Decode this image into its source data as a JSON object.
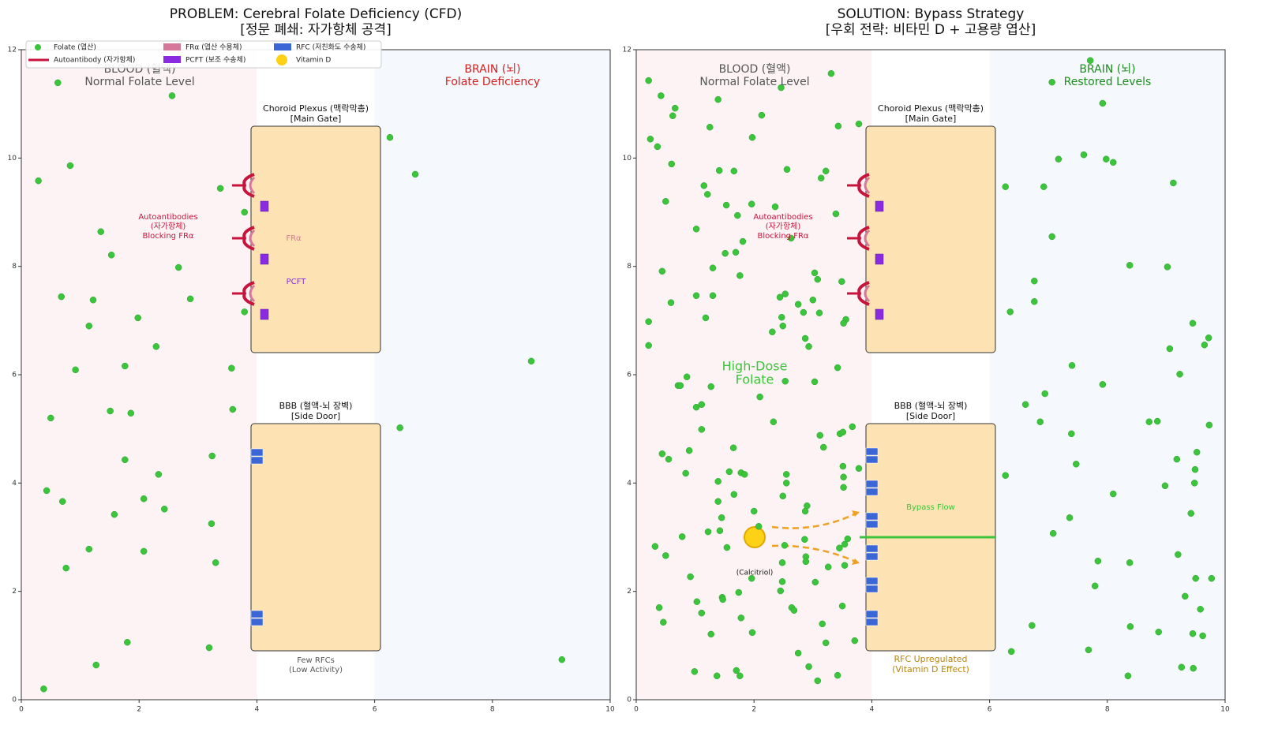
{
  "chart_data": [
    {
      "type": "scatter",
      "title": [
        "PROBLEM: Cerebral Folate Deficiency (CFD)",
        "[정문 폐쇄: 자가항체 공격]"
      ],
      "xlim": [
        0,
        10
      ],
      "ylim": [
        0,
        12
      ],
      "xticks": [
        0,
        2,
        4,
        6,
        8,
        10
      ],
      "yticks": [
        0,
        2,
        4,
        6,
        8,
        10,
        12
      ],
      "series": [
        {
          "name": "Folate (엽산)",
          "color": "#3cc43c",
          "x": [
            0.62,
            2.56,
            0.83,
            0.29,
            6.26,
            6.69,
            3.38,
            3.79,
            1.35,
            1.53,
            2.67,
            0.68,
            1.22,
            2.87,
            1.15,
            1.98,
            3.79,
            2.29,
            0.92,
            1.76,
            3.57,
            8.66,
            0.5,
            1.51,
            1.86,
            3.59,
            6.43,
            1.76,
            3.24,
            2.33,
            0.43,
            0.7,
            2.08,
            2.43,
            1.58,
            3.23,
            1.15,
            2.08,
            3.3,
            0.76,
            1.8,
            3.19,
            1.27,
            0.38,
            9.18
          ],
          "values": [
            11.39,
            11.15,
            9.86,
            9.58,
            10.38,
            9.7,
            9.44,
            9.0,
            8.64,
            8.21,
            7.98,
            7.44,
            7.38,
            7.4,
            6.9,
            7.05,
            7.16,
            6.52,
            6.09,
            6.16,
            6.12,
            6.25,
            5.2,
            5.33,
            5.29,
            5.36,
            5.02,
            4.43,
            4.5,
            4.16,
            3.86,
            3.66,
            3.71,
            3.52,
            3.42,
            3.25,
            2.78,
            2.74,
            2.53,
            2.43,
            1.06,
            0.96,
            0.64,
            0.2,
            0.74
          ]
        }
      ],
      "legend_items": [
        {
          "name": "Autoantibody (자가항체)",
          "color": "#c8143c"
        },
        {
          "name": "FRα (엽산 수용체)",
          "color": "#d6789a"
        },
        {
          "name": "PCFT (보조 수송체)",
          "color": "#8a2be2"
        },
        {
          "name": "RFC (저친화도 수송체)",
          "color": "#3a66d6"
        },
        {
          "name": "Vitamin D",
          "color": "#fcd116"
        }
      ],
      "annotations": [
        {
          "text": [
            "BLOOD (혈액)",
            "Normal Folate Level"
          ],
          "color": "#555555"
        },
        {
          "text": [
            "BRAIN (뇌)",
            "Folate Deficiency"
          ],
          "color": "#d62020"
        },
        {
          "text": [
            "Choroid Plexus (맥락막총)",
            "[Main Gate]"
          ],
          "color": "#111111"
        },
        {
          "text": [
            "Autoantibodies",
            "(자가항체)",
            "Blocking FRα"
          ],
          "color": "#c8143c"
        },
        {
          "text": [
            "FRα"
          ],
          "color": "#d6789a"
        },
        {
          "text": [
            "PCFT"
          ],
          "color": "#8a2be2"
        },
        {
          "text": [
            "BBB (혈액-뇌 장벽)",
            "[Side Door]"
          ],
          "color": "#111111"
        },
        {
          "text": [
            "Few RFCs",
            "(Low Activity)"
          ],
          "color": "#555555"
        }
      ]
    },
    {
      "type": "scatter",
      "title": [
        "SOLUTION: Bypass Strategy",
        "[우회 전략: 비타민 D + 고용량 엽산]"
      ],
      "xlim": [
        0,
        10
      ],
      "ylim": [
        0,
        12
      ],
      "xticks": [
        0,
        2,
        4,
        6,
        8,
        10
      ],
      "yticks": [
        0,
        2,
        4,
        6,
        8,
        10,
        12
      ],
      "series": [
        {
          "color": "#3cc43c",
          "x": [
            0.21,
            0.42,
            0.66,
            0.62,
            1.39,
            2.13,
            3.31,
            3.43,
            3.78,
            2.46,
            0.24,
            0.36,
            0.6,
            1.25,
            1.97,
            2.56,
            3.22,
            3.14,
            1.41,
            1.66,
            1.15,
            1.21,
            0.5,
            1.53,
            1.96,
            2.36,
            1.72,
            3.39,
            1.02,
            1.81,
            1.51,
            1.69,
            2.63,
            1.3,
            0.44,
            3.03,
            3.08,
            3.49,
            1.76,
            0.59,
            1.02,
            1.3,
            2.44,
            2.53,
            2.75,
            3.0,
            2.84,
            3.11,
            3.56,
            3.52,
            2.47,
            2.49,
            2.31,
            1.18,
            0.21,
            2.87,
            2.93,
            0.21,
            3.42,
            3.03,
            0.86,
            0.71,
            0.75,
            1.27,
            2.53,
            2.1,
            1.02,
            1.11,
            1.11,
            2.33,
            3.67,
            3.12,
            3.46,
            3.51,
            3.18,
            1.65,
            0.9,
            0.44,
            0.55,
            3.51,
            3.78,
            0.84,
            1.58,
            1.78,
            1.84,
            2.55,
            3.52,
            1.39,
            2.55,
            3.52,
            1.66,
            2.49,
            1.39,
            2.9,
            2.87,
            2.0,
            1.45,
            2.08,
            1.22,
            1.42,
            0.78,
            2.86,
            3.59,
            3.54,
            3.45,
            1.54,
            2.52,
            0.32,
            0.5,
            2.88,
            2.88,
            2.48,
            3.26,
            3.54,
            1.96,
            0.92,
            2.48,
            3.04,
            1.74,
            2.45,
            1.03,
            2.64,
            3.5,
            0.39,
            1.46,
            1.11,
            2.68,
            1.47,
            0.46,
            1.78,
            3.16,
            1.27,
            1.97,
            3.71,
            3.22,
            2.75,
            2.93,
            0.99,
            1.7,
            1.37,
            1.76,
            3.42,
            3.08,
            7.71,
            7.06,
            7.92,
            7.6,
            7.98,
            8.1,
            7.17,
            9.12,
            6.27,
            6.92,
            7.06,
            8.38,
            9.02,
            6.76,
            6.76,
            6.35,
            9.45,
            9.72,
            9.65,
            9.06,
            7.4,
            9.23,
            7.92,
            6.94,
            6.61,
            6.86,
            8.71,
            8.85,
            9.73,
            7.39,
            9.52,
            9.18,
            7.47,
            9.49,
            6.27,
            9.48,
            8.98,
            8.1,
            9.42,
            7.36,
            7.08,
            9.2,
            7.84,
            8.38,
            7.79,
            9.5,
            9.77,
            9.32,
            9.58,
            6.72,
            8.39,
            8.87,
            9.45,
            9.62,
            6.37,
            7.68,
            9.26,
            9.46,
            8.35
          ],
          "values": [
            11.43,
            11.15,
            10.92,
            10.78,
            11.08,
            10.79,
            11.56,
            10.59,
            10.63,
            11.3,
            10.35,
            10.21,
            9.89,
            10.57,
            10.38,
            9.79,
            9.76,
            9.63,
            9.77,
            9.76,
            9.49,
            9.33,
            9.2,
            9.13,
            9.15,
            9.1,
            8.94,
            8.97,
            8.69,
            8.46,
            8.24,
            8.26,
            8.52,
            7.97,
            7.91,
            7.88,
            7.76,
            7.72,
            7.83,
            7.33,
            7.46,
            7.46,
            7.43,
            7.49,
            7.3,
            7.38,
            7.15,
            7.14,
            7.02,
            6.95,
            7.06,
            6.9,
            6.79,
            7.05,
            6.98,
            6.67,
            6.52,
            6.54,
            6.13,
            5.87,
            5.96,
            5.8,
            5.8,
            5.78,
            5.88,
            5.59,
            5.4,
            5.45,
            4.99,
            5.13,
            5.04,
            4.88,
            4.91,
            4.94,
            4.66,
            4.65,
            4.6,
            4.54,
            4.44,
            4.31,
            4.27,
            4.18,
            4.21,
            4.19,
            4.16,
            4.16,
            4.11,
            4.03,
            4.0,
            3.92,
            3.79,
            3.76,
            3.66,
            3.58,
            3.48,
            3.48,
            3.36,
            3.2,
            3.1,
            3.12,
            3.01,
            2.96,
            2.97,
            2.87,
            2.8,
            2.81,
            2.85,
            2.83,
            2.66,
            2.64,
            2.55,
            2.53,
            2.45,
            2.48,
            2.24,
            2.27,
            2.18,
            2.17,
            1.98,
            2.01,
            1.81,
            1.7,
            1.73,
            1.7,
            1.89,
            1.6,
            1.65,
            1.85,
            1.43,
            1.51,
            1.4,
            1.21,
            1.24,
            1.09,
            1.05,
            0.86,
            0.61,
            0.52,
            0.54,
            0.44,
            0.44,
            0.45,
            0.35,
            11.8,
            11.4,
            11.01,
            10.06,
            9.98,
            9.92,
            9.98,
            9.54,
            9.47,
            9.47,
            8.55,
            8.02,
            7.99,
            7.73,
            7.35,
            7.16,
            6.95,
            6.68,
            6.55,
            6.48,
            6.17,
            6.01,
            5.82,
            5.65,
            5.45,
            5.13,
            5.13,
            5.14,
            5.07,
            4.91,
            4.57,
            4.44,
            4.35,
            4.25,
            4.14,
            4.0,
            3.95,
            3.8,
            3.44,
            3.36,
            3.07,
            2.68,
            2.56,
            2.53,
            2.1,
            2.24,
            2.24,
            1.91,
            1.67,
            1.37,
            1.35,
            1.25,
            1.22,
            1.18,
            0.89,
            0.92,
            0.6,
            0.58,
            0.44
          ]
        }
      ],
      "annotations": [
        {
          "text": [
            "BLOOD (혈액)",
            "Normal Folate Level"
          ],
          "color": "#555555"
        },
        {
          "text": [
            "BRAIN (뇌)",
            "Restored Levels"
          ],
          "color": "#1e8c1e"
        },
        {
          "text": [
            "Choroid Plexus (맥락막총)",
            "[Main Gate]"
          ],
          "color": "#111111"
        },
        {
          "text": [
            "Autoantibodies",
            "(자가항체)",
            "Blocking FRα"
          ],
          "color": "#c8143c"
        },
        {
          "text": [
            "High-Dose",
            "Folate"
          ],
          "color": "#3cc43c"
        },
        {
          "text": [
            "BBB (혈액-뇌 장벽)",
            "[Side Door]"
          ],
          "color": "#111111"
        },
        {
          "text": [
            "(Calcitriol)"
          ],
          "color": "#111111"
        },
        {
          "text": [
            "Bypass Flow"
          ],
          "color": "#3cc43c"
        },
        {
          "text": [
            "RFC Upregulated",
            "(Vitamin D Effect)"
          ],
          "color": "#b8860b"
        }
      ]
    }
  ]
}
